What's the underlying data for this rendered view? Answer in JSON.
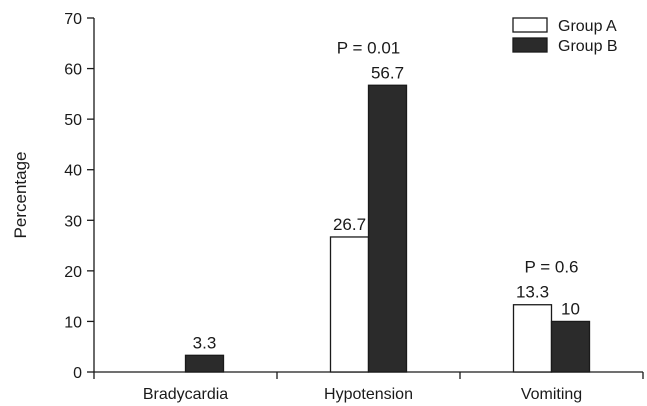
{
  "chart_data": {
    "type": "bar",
    "ylabel": "Percentage",
    "ylim": [
      0,
      70
    ],
    "yticks": [
      0,
      10,
      20,
      30,
      40,
      50,
      60,
      70
    ],
    "grid": false,
    "legend_position": "top-right",
    "categories": [
      "Bradycardia",
      "Hypotension",
      "Vomiting"
    ],
    "series": [
      {
        "name": "Group A",
        "color": "#ffffff",
        "values": [
          0,
          26.7,
          13.3
        ],
        "labels": [
          "",
          "26.7",
          "13.3"
        ]
      },
      {
        "name": "Group B",
        "color": "#2b2b2b",
        "values": [
          3.3,
          56.7,
          10
        ],
        "labels": [
          "3.3",
          "56.7",
          "10"
        ]
      }
    ],
    "annotations": [
      {
        "category": "Hypotension",
        "text": "P = 0.01"
      },
      {
        "category": "Vomiting",
        "text": "P = 0.6"
      }
    ]
  }
}
